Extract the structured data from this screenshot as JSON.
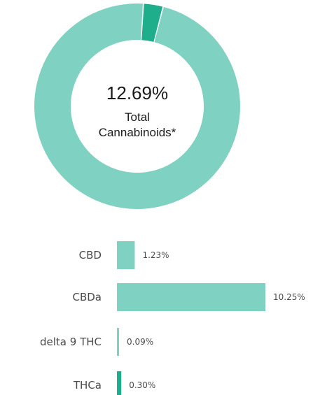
{
  "chart_data": [
    {
      "type": "pie",
      "center_value": "12.69%",
      "center_label_line1": "Total",
      "center_label_line2": "Cannabinoids*",
      "slices": [
        {
          "value": 96.9,
          "color": "#7fd1c2"
        },
        {
          "value": 3.1,
          "color": "#1fae8c"
        }
      ]
    },
    {
      "type": "bar",
      "orientation": "horizontal",
      "categories": [
        "CBD",
        "CBDa",
        "delta 9 THC",
        "THCa"
      ],
      "values": [
        1.23,
        10.25,
        0.09,
        0.3
      ],
      "value_labels": [
        "1.23%",
        "10.25%",
        "0.09%",
        "0.30%"
      ],
      "colors": [
        "#7fd1c2",
        "#7fd1c2",
        "#7fd1c2",
        "#1fae8c"
      ],
      "xlim": [
        0,
        10.25
      ]
    }
  ]
}
